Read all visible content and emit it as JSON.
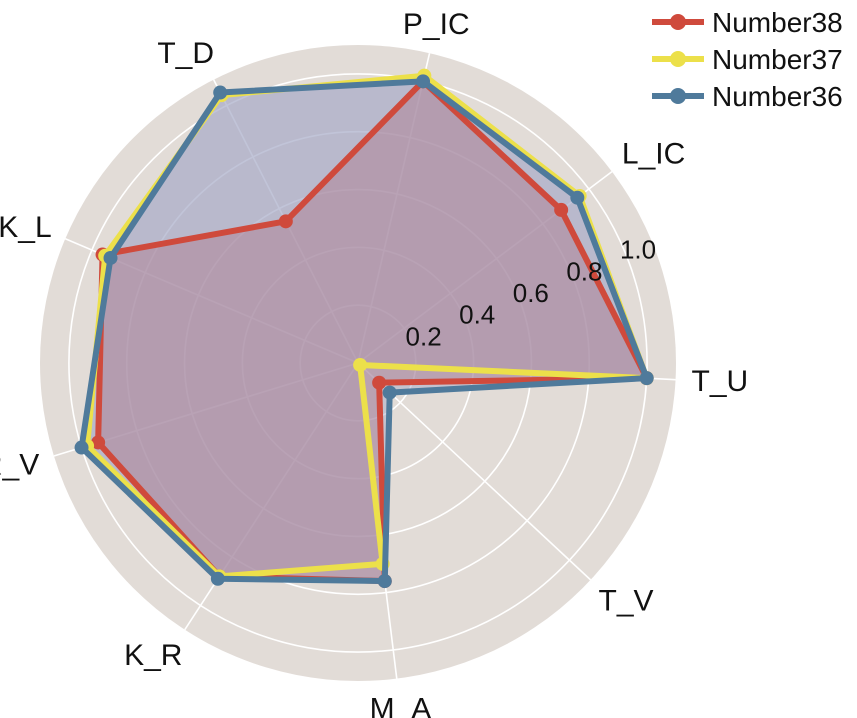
{
  "chart_data": {
    "type": "radar",
    "axes": [
      "T_U",
      "L_IC",
      "P_IC",
      "T_D",
      "K_L",
      "R_V",
      "K_R",
      "M_A",
      "T_V"
    ],
    "rticks": [
      "0.2",
      "0.4",
      "0.6",
      "0.8",
      "1.0"
    ],
    "rlim": [
      0,
      1.1
    ],
    "grid": true,
    "legend_position": "top-right",
    "series": [
      {
        "name": "Number38",
        "color": "#cf4a3c",
        "values": [
          1.0,
          0.88,
          1.0,
          0.55,
          0.96,
          0.94,
          0.88,
          0.76,
          0.1
        ]
      },
      {
        "name": "Number37",
        "color": "#ece04a",
        "values": [
          1.0,
          0.96,
          1.02,
          1.04,
          0.95,
          0.98,
          0.88,
          0.7,
          0.01
        ]
      },
      {
        "name": "Number36",
        "color": "#4f7a9b",
        "values": [
          1.0,
          0.95,
          1.0,
          1.05,
          0.93,
          1.0,
          0.89,
          0.76,
          0.15
        ]
      }
    ]
  }
}
